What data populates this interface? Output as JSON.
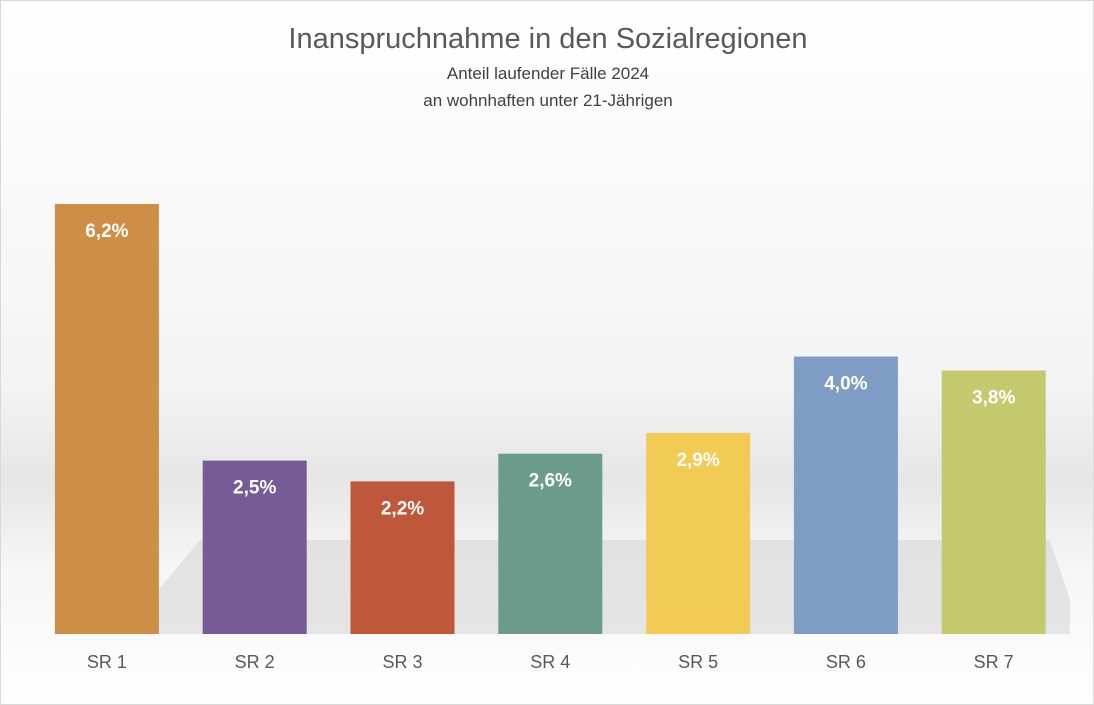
{
  "chart_data": {
    "type": "bar",
    "title": "Inanspruchnahme in den Sozialregionen",
    "subtitle_lines": [
      "Anteil laufender Fälle 2024",
      "an wohnhaften unter 21-Jährigen"
    ],
    "categories": [
      "SR 1",
      "SR 2",
      "SR 3",
      "SR 4",
      "SR 5",
      "SR 6",
      "SR 7"
    ],
    "values": [
      6.2,
      2.5,
      2.2,
      2.6,
      2.9,
      4.0,
      3.8
    ],
    "data_labels": [
      "6,2%",
      "2,5%",
      "2,2%",
      "2,6%",
      "2,9%",
      "4,0%",
      "3,8%"
    ],
    "colors": [
      "#CD8E46",
      "#765B96",
      "#BF573B",
      "#6B9C8B",
      "#F2CB55",
      "#7F9CC4",
      "#C4C96E"
    ],
    "xlabel": "",
    "ylabel": "",
    "ylim": [
      0,
      6.2
    ],
    "grid": false,
    "legend": "none"
  }
}
